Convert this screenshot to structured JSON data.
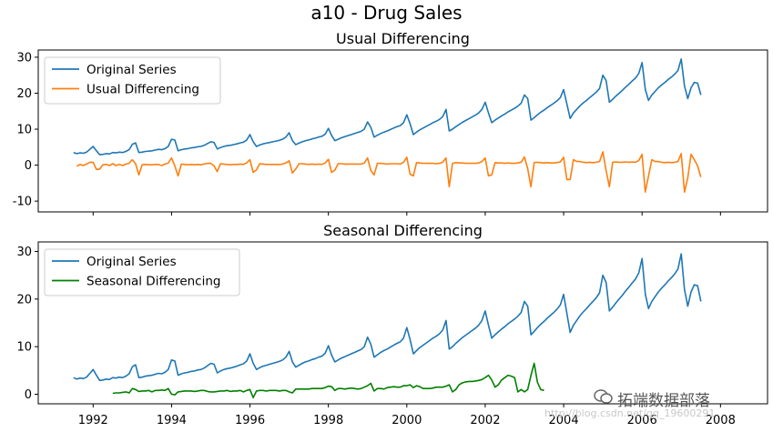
{
  "figure": {
    "suptitle": "a10 - Drug Sales"
  },
  "chart_data": [
    {
      "type": "line",
      "title": "Usual Differencing",
      "xlabel": "",
      "ylabel": "",
      "xlim": [
        1990.6,
        2009.2
      ],
      "ylim": [
        -13,
        32
      ],
      "xticks": [
        1992,
        1994,
        1996,
        1998,
        2000,
        2002,
        2004,
        2006,
        2008
      ],
      "xtick_labels_visible": false,
      "yticks": [
        -10,
        0,
        10,
        20,
        30
      ],
      "grid": false,
      "legend": "top-left",
      "series": [
        {
          "name": "Original Series",
          "color": "#1f77b4",
          "x_start": 1991.5,
          "step": 0.08333,
          "values": [
            3.5,
            3.2,
            3.4,
            3.3,
            3.6,
            4.4,
            5.2,
            4.0,
            2.9,
            3.0,
            3.2,
            3.1,
            3.5,
            3.4,
            3.6,
            3.5,
            3.8,
            4.3,
            5.8,
            6.2,
            3.5,
            3.6,
            3.8,
            3.9,
            4.0,
            4.2,
            4.4,
            4.3,
            4.6,
            5.2,
            7.2,
            7.0,
            4.0,
            4.3,
            4.5,
            4.6,
            4.8,
            4.9,
            5.1,
            5.2,
            5.5,
            6.0,
            6.5,
            6.3,
            4.5,
            4.9,
            5.2,
            5.4,
            5.5,
            5.7,
            5.9,
            6.2,
            6.4,
            7.0,
            8.5,
            6.5,
            5.2,
            5.6,
            5.9,
            6.1,
            6.3,
            6.5,
            6.7,
            6.9,
            7.2,
            7.8,
            9.0,
            6.8,
            5.7,
            6.1,
            6.5,
            6.8,
            7.0,
            7.3,
            7.5,
            7.8,
            8.0,
            8.6,
            10.2,
            8.2,
            6.8,
            7.2,
            7.6,
            7.9,
            8.2,
            8.5,
            8.8,
            9.1,
            9.4,
            10.0,
            12.0,
            10.5,
            7.8,
            8.3,
            8.8,
            9.2,
            9.5,
            9.9,
            10.3,
            10.7,
            11.0,
            11.8,
            14.0,
            11.5,
            8.5,
            9.2,
            9.8,
            10.3,
            10.8,
            11.3,
            11.8,
            12.2,
            12.7,
            13.5,
            15.5,
            9.5,
            10.0,
            10.7,
            11.3,
            11.9,
            12.4,
            12.9,
            13.4,
            13.9,
            14.5,
            15.5,
            17.5,
            14.5,
            11.8,
            12.5,
            13.1,
            13.7,
            14.2,
            14.8,
            15.3,
            15.8,
            16.4,
            17.2,
            19.5,
            18.5,
            12.5,
            13.2,
            14.0,
            14.7,
            15.3,
            16.0,
            16.6,
            17.2,
            17.9,
            18.8,
            21.0,
            17.0,
            13.0,
            14.5,
            15.5,
            16.5,
            17.3,
            18.0,
            18.8,
            19.5,
            20.3,
            21.3,
            25.0,
            23.5,
            17.5,
            18.3,
            19.2,
            20.0,
            20.8,
            21.7,
            22.5,
            23.4,
            24.2,
            25.5,
            28.5,
            21.0,
            18.0,
            19.5,
            20.5,
            21.5,
            22.3,
            23.0,
            23.8,
            24.5,
            25.3,
            26.3,
            29.5,
            22.0,
            18.5,
            21.5,
            23.0,
            22.8,
            19.5
          ]
        },
        {
          "name": "Usual Differencing",
          "color": "#ff7f0e",
          "x_start": 1991.583,
          "step": 0.08333,
          "values": [
            -0.3,
            0.2,
            -0.1,
            0.3,
            0.8,
            0.8,
            -1.2,
            -1.1,
            0.1,
            0.2,
            -0.1,
            0.4,
            -0.1,
            0.2,
            -0.1,
            0.3,
            0.5,
            1.5,
            0.4,
            -2.7,
            0.1,
            0.2,
            0.1,
            0.1,
            0.2,
            0.2,
            -0.1,
            0.3,
            0.6,
            2.0,
            -0.2,
            -3.0,
            0.3,
            0.2,
            0.1,
            0.2,
            0.1,
            0.2,
            0.1,
            0.3,
            0.5,
            0.5,
            -0.2,
            -1.8,
            0.4,
            0.3,
            0.2,
            0.1,
            0.2,
            0.2,
            0.3,
            0.2,
            0.6,
            1.5,
            -2.0,
            -1.3,
            0.4,
            0.3,
            0.2,
            0.2,
            0.2,
            0.2,
            0.2,
            0.3,
            0.6,
            1.2,
            -2.2,
            -1.1,
            0.4,
            0.4,
            0.3,
            0.2,
            0.3,
            0.2,
            0.3,
            0.2,
            0.6,
            1.6,
            -2.0,
            -1.4,
            0.4,
            0.4,
            0.3,
            0.3,
            0.3,
            0.3,
            0.3,
            0.3,
            0.6,
            2.0,
            -1.5,
            -2.7,
            0.5,
            0.5,
            0.4,
            0.3,
            0.4,
            0.4,
            0.4,
            0.3,
            0.8,
            2.2,
            -2.5,
            -3.0,
            0.7,
            0.6,
            0.5,
            0.5,
            0.5,
            0.5,
            0.4,
            0.5,
            0.8,
            2.0,
            -6.0,
            0.5,
            0.7,
            0.6,
            0.6,
            0.5,
            0.5,
            0.5,
            0.5,
            0.6,
            1.0,
            2.0,
            -3.0,
            -2.7,
            0.7,
            0.6,
            0.6,
            0.5,
            0.6,
            0.5,
            0.5,
            0.6,
            0.8,
            2.3,
            -1.0,
            -6.0,
            0.7,
            0.8,
            0.7,
            0.6,
            0.7,
            0.6,
            0.6,
            0.7,
            0.9,
            2.2,
            -4.0,
            -4.0,
            1.5,
            1.0,
            1.0,
            0.8,
            0.7,
            0.8,
            0.7,
            0.8,
            1.0,
            3.7,
            -1.5,
            -6.0,
            0.8,
            0.9,
            0.8,
            0.8,
            0.9,
            0.8,
            0.9,
            0.8,
            1.3,
            3.0,
            -7.5,
            -3.0,
            1.5,
            1.0,
            1.0,
            0.8,
            0.7,
            0.8,
            0.7,
            0.8,
            1.0,
            3.2,
            -7.5,
            -3.5,
            3.0,
            1.5,
            -0.2,
            -3.3
          ]
        }
      ]
    },
    {
      "type": "line",
      "title": "Seasonal Differencing",
      "xlabel": "",
      "ylabel": "",
      "xlim": [
        1990.6,
        2009.2
      ],
      "ylim": [
        -2,
        32
      ],
      "xticks": [
        1992,
        1994,
        1996,
        1998,
        2000,
        2002,
        2004,
        2006,
        2008
      ],
      "xtick_labels": [
        "1992",
        "1994",
        "1996",
        "1998",
        "2000",
        "2002",
        "2004",
        "2006",
        "2008"
      ],
      "yticks": [
        0,
        10,
        20,
        30
      ],
      "grid": false,
      "legend": "top-left",
      "series": [
        {
          "name": "Original Series",
          "color": "#1f77b4",
          "ref": 0
        },
        {
          "name": "Seasonal Differencing",
          "color": "green",
          "x_start": 1992.5,
          "step": 0.08333,
          "values": [
            0.2,
            0.3,
            0.3,
            0.4,
            0.5,
            0.3,
            1.2,
            1.0,
            0.6,
            0.7,
            0.7,
            0.8,
            0.5,
            0.8,
            0.8,
            0.9,
            0.8,
            1.2,
            0.0,
            -0.1,
            0.5,
            0.6,
            0.7,
            0.7,
            0.7,
            0.6,
            0.7,
            0.8,
            0.8,
            0.6,
            0.5,
            0.5,
            0.6,
            0.7,
            0.7,
            0.8,
            0.6,
            0.7,
            0.7,
            0.8,
            0.5,
            0.8,
            1.0,
            -0.7,
            0.7,
            0.8,
            0.8,
            0.7,
            0.8,
            0.8,
            0.8,
            0.7,
            0.8,
            0.8,
            0.5,
            0.3,
            1.1,
            1.1,
            1.1,
            1.1,
            1.1,
            1.2,
            1.2,
            1.2,
            1.2,
            1.4,
            1.7,
            1.6,
            0.8,
            1.2,
            1.2,
            1.1,
            1.2,
            1.3,
            1.2,
            1.1,
            1.2,
            1.5,
            1.8,
            2.3,
            0.7,
            1.2,
            1.2,
            1.1,
            1.4,
            1.5,
            1.6,
            1.5,
            1.5,
            1.8,
            1.8,
            2.0,
            1.4,
            1.8,
            1.6,
            1.2,
            1.2,
            1.2,
            1.3,
            1.5,
            1.5,
            1.5,
            1.7,
            2.0,
            0.5,
            1.0,
            2.0,
            2.4,
            2.6,
            2.7,
            2.7,
            2.8,
            2.9,
            3.1,
            3.5,
            4.0,
            3.0,
            1.5,
            2.0,
            3.0,
            3.5,
            4.0,
            3.8,
            3.5,
            0.5,
            1.0,
            0.5,
            1.0,
            4.0,
            6.5,
            2.5,
            1.0,
            0.8
          ]
        }
      ]
    }
  ],
  "watermarks": {
    "url_text": "http://blog.csdn.net/qq_19600291",
    "logo_text": "拓端数据部落",
    "logo_icon": "wechat-icon"
  }
}
